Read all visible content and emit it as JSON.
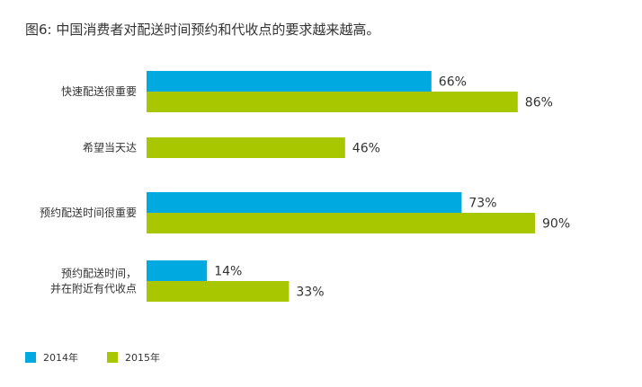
{
  "title": "图6: 中国消费者对配送时间预约和代收点的要求越来越高。",
  "colors": {
    "2014": "#00a9e0",
    "2015": "#a8c700"
  },
  "chart_data": {
    "type": "bar",
    "orientation": "horizontal",
    "title": "图6: 中国消费者对配送时间预约和代收点的要求越来越高。",
    "categories": [
      [
        "快速配送很重要"
      ],
      [
        "希望当天达"
      ],
      [
        "预约配送时间很重要"
      ],
      [
        "预约配送时间，",
        "并在附近有代收点"
      ]
    ],
    "series": [
      {
        "name": "2014年",
        "color": "#00a9e0",
        "values": [
          66,
          null,
          73,
          14
        ]
      },
      {
        "name": "2015年",
        "color": "#a8c700",
        "values": [
          86,
          46,
          90,
          33
        ]
      }
    ],
    "value_suffix": "%",
    "xlim": [
      0,
      100
    ],
    "grid": false,
    "legend": "bottom-left"
  }
}
